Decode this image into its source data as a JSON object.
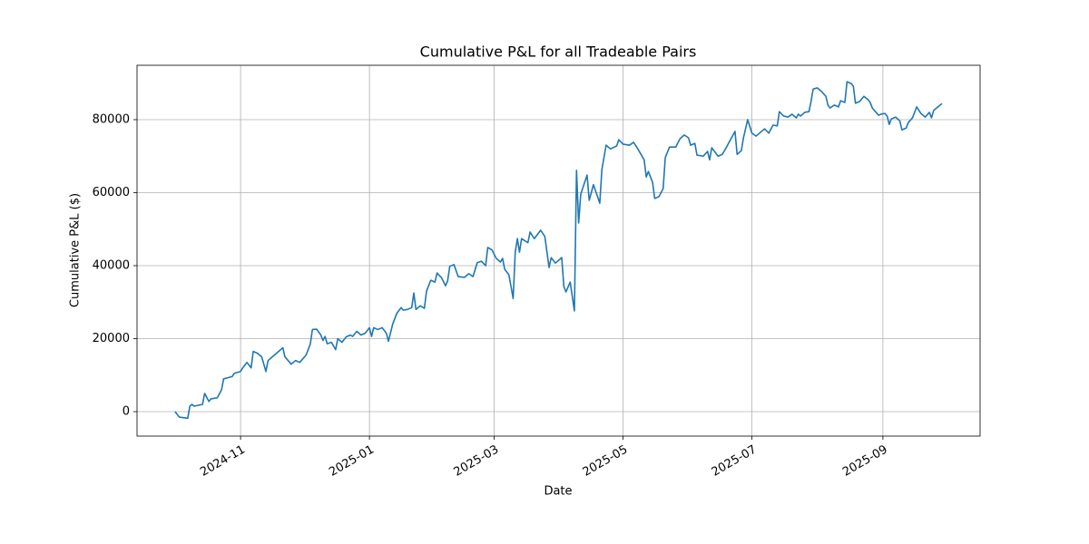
{
  "chart_data": {
    "type": "line",
    "title": "Cumulative P&L for all Tradeable Pairs",
    "xlabel": "Date",
    "ylabel": "Cumulative P&L ($)",
    "grid": true,
    "xlim": [
      "2024-09-13",
      "2025-10-17"
    ],
    "ylim": [
      -6700,
      94900
    ],
    "xticks": [
      {
        "value": "2024-11-01",
        "label": "2024-11"
      },
      {
        "value": "2025-01-01",
        "label": "2025-01"
      },
      {
        "value": "2025-03-01",
        "label": "2025-03"
      },
      {
        "value": "2025-05-01",
        "label": "2025-05"
      },
      {
        "value": "2025-07-01",
        "label": "2025-07"
      },
      {
        "value": "2025-09-01",
        "label": "2025-09"
      }
    ],
    "yticks": [
      0,
      20000,
      40000,
      60000,
      80000
    ],
    "x": [
      "2024-10-01",
      "2024-10-03",
      "2024-10-07",
      "2024-10-08",
      "2024-10-09",
      "2024-10-10",
      "2024-10-14",
      "2024-10-15",
      "2024-10-17",
      "2024-10-18",
      "2024-10-21",
      "2024-10-23",
      "2024-10-24",
      "2024-10-26",
      "2024-10-28",
      "2024-10-29",
      "2024-11-01",
      "2024-11-02",
      "2024-11-04",
      "2024-11-06",
      "2024-11-07",
      "2024-11-09",
      "2024-11-11",
      "2024-11-13",
      "2024-11-14",
      "2024-11-16",
      "2024-11-19",
      "2024-11-21",
      "2024-11-22",
      "2024-11-25",
      "2024-11-27",
      "2024-11-29",
      "2024-12-02",
      "2024-12-04",
      "2024-12-05",
      "2024-12-07",
      "2024-12-09",
      "2024-12-10",
      "2024-12-11",
      "2024-12-12",
      "2024-12-14",
      "2024-12-16",
      "2024-12-17",
      "2024-12-19",
      "2024-12-21",
      "2024-12-23",
      "2024-12-24",
      "2024-12-26",
      "2024-12-28",
      "2024-12-30",
      "2025-01-01",
      "2025-01-02",
      "2025-01-03",
      "2025-01-05",
      "2025-01-07",
      "2025-01-09",
      "2025-01-10",
      "2025-01-12",
      "2025-01-14",
      "2025-01-16",
      "2025-01-17",
      "2025-01-19",
      "2025-01-21",
      "2025-01-22",
      "2025-01-23",
      "2025-01-25",
      "2025-01-27",
      "2025-01-28",
      "2025-01-30",
      "2025-02-01",
      "2025-02-02",
      "2025-02-03",
      "2025-02-04",
      "2025-02-06",
      "2025-02-07",
      "2025-02-08",
      "2025-02-10",
      "2025-02-12",
      "2025-02-15",
      "2025-02-17",
      "2025-02-19",
      "2025-02-21",
      "2025-02-23",
      "2025-02-25",
      "2025-02-26",
      "2025-02-28",
      "2025-03-02",
      "2025-03-04",
      "2025-03-05",
      "2025-03-06",
      "2025-03-08",
      "2025-03-10",
      "2025-03-11",
      "2025-03-12",
      "2025-03-13",
      "2025-03-14",
      "2025-03-17",
      "2025-03-18",
      "2025-03-20",
      "2025-03-23",
      "2025-03-25",
      "2025-03-27",
      "2025-03-28",
      "2025-03-30",
      "2025-04-02",
      "2025-04-03",
      "2025-04-04",
      "2025-04-06",
      "2025-04-08",
      "2025-04-09",
      "2025-04-10",
      "2025-04-11",
      "2025-04-14",
      "2025-04-15",
      "2025-04-17",
      "2025-04-20",
      "2025-04-21",
      "2025-04-23",
      "2025-04-25",
      "2025-04-28",
      "2025-04-29",
      "2025-05-01",
      "2025-05-04",
      "2025-05-06",
      "2025-05-08",
      "2025-05-11",
      "2025-05-12",
      "2025-05-13",
      "2025-05-15",
      "2025-05-16",
      "2025-05-18",
      "2025-05-20",
      "2025-05-21",
      "2025-05-23",
      "2025-05-26",
      "2025-05-28",
      "2025-05-30",
      "2025-06-01",
      "2025-06-02",
      "2025-06-04",
      "2025-06-05",
      "2025-06-08",
      "2025-06-10",
      "2025-06-11",
      "2025-06-12",
      "2025-06-15",
      "2025-06-17",
      "2025-06-19",
      "2025-06-23",
      "2025-06-24",
      "2025-06-26",
      "2025-06-27",
      "2025-06-29",
      "2025-07-01",
      "2025-07-03",
      "2025-07-05",
      "2025-07-07",
      "2025-07-09",
      "2025-07-11",
      "2025-07-13",
      "2025-07-14",
      "2025-07-16",
      "2025-07-18",
      "2025-07-20",
      "2025-07-22",
      "2025-07-23",
      "2025-07-24",
      "2025-07-26",
      "2025-07-28",
      "2025-07-29",
      "2025-07-30",
      "2025-08-01",
      "2025-08-03",
      "2025-08-05",
      "2025-08-06",
      "2025-08-07",
      "2025-08-09",
      "2025-08-11",
      "2025-08-12",
      "2025-08-14",
      "2025-08-15",
      "2025-08-17",
      "2025-08-18",
      "2025-08-19",
      "2025-08-21",
      "2025-08-23",
      "2025-08-25",
      "2025-08-26",
      "2025-08-27",
      "2025-08-28",
      "2025-08-30",
      "2025-08-31",
      "2025-09-02",
      "2025-09-03",
      "2025-09-04",
      "2025-09-05",
      "2025-09-07",
      "2025-09-09",
      "2025-09-10",
      "2025-09-12",
      "2025-09-13",
      "2025-09-15",
      "2025-09-17",
      "2025-09-19",
      "2025-09-21",
      "2025-09-23",
      "2025-09-24",
      "2025-09-25",
      "2025-09-27",
      "2025-09-29"
    ],
    "series": [
      {
        "color": "#1f77b4",
        "values": [
          0,
          -1500,
          -1800,
          1500,
          2000,
          1500,
          2000,
          5000,
          2800,
          3500,
          3800,
          6000,
          9000,
          9300,
          9600,
          10500,
          11000,
          12000,
          13500,
          12000,
          16500,
          16000,
          15000,
          11000,
          14000,
          15000,
          16500,
          17500,
          15000,
          13000,
          14000,
          13500,
          15500,
          18500,
          22500,
          22600,
          21000,
          19500,
          20600,
          18600,
          19000,
          17000,
          20000,
          19000,
          20500,
          21000,
          20600,
          22000,
          21000,
          21500,
          23000,
          20600,
          23000,
          22500,
          23000,
          21500,
          19300,
          24000,
          27000,
          28500,
          27800,
          28000,
          28500,
          32500,
          28000,
          29000,
          28300,
          33000,
          36000,
          35500,
          38000,
          37300,
          36800,
          34500,
          35800,
          39800,
          40300,
          37000,
          36800,
          37800,
          37000,
          40800,
          41200,
          40000,
          45000,
          44300,
          42000,
          41000,
          42000,
          39000,
          37500,
          31000,
          43700,
          47400,
          43700,
          47400,
          46300,
          49200,
          47400,
          49700,
          48000,
          39500,
          42200,
          40700,
          42200,
          34300,
          32800,
          35500,
          27600,
          66100,
          51700,
          59600,
          64800,
          57900,
          62200,
          57100,
          66300,
          73000,
          72000,
          72800,
          74500,
          73300,
          73000,
          73800,
          72000,
          69000,
          64300,
          65800,
          62800,
          58400,
          58900,
          61100,
          69600,
          72500,
          72500,
          74800,
          75800,
          75000,
          73000,
          73500,
          70300,
          70000,
          71300,
          69000,
          72300,
          70000,
          70500,
          72500,
          76800,
          70500,
          71500,
          75000,
          80000,
          76300,
          75500,
          76500,
          77500,
          76300,
          78500,
          78300,
          82200,
          81000,
          80700,
          81500,
          80500,
          81500,
          81000,
          82000,
          82200,
          85000,
          88400,
          88700,
          87700,
          86400,
          84000,
          83200,
          84000,
          83500,
          85200,
          84700,
          90400,
          89900,
          89200,
          84500,
          85000,
          86400,
          85500,
          84700,
          83200,
          82500,
          81200,
          81500,
          81700,
          81000,
          78700,
          80200,
          80700,
          79700,
          77200,
          77700,
          79200,
          80500,
          83500,
          81700,
          80700,
          82000,
          80500,
          82500,
          83500,
          84400
        ]
      }
    ]
  }
}
